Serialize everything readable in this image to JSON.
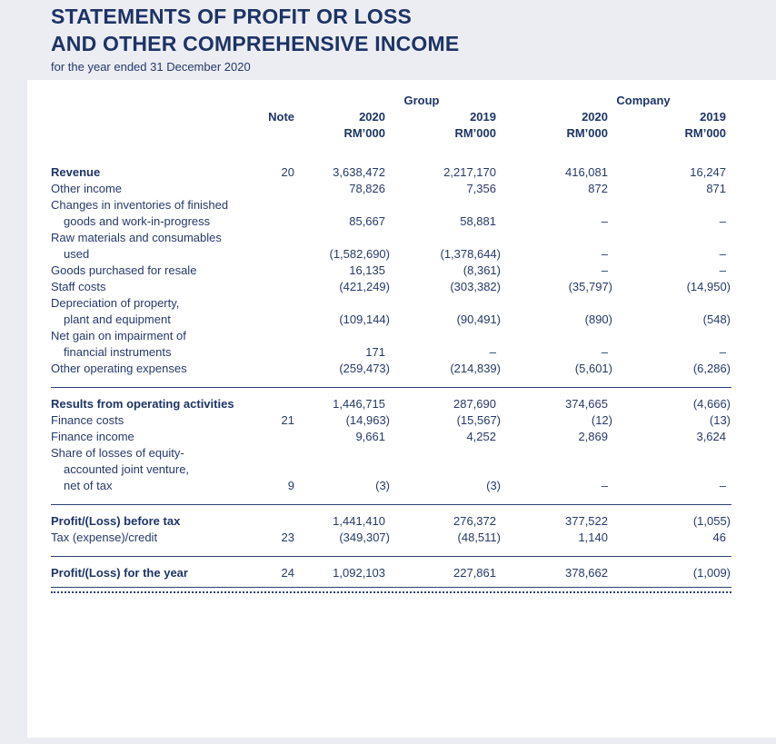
{
  "document": {
    "title_lines": [
      "STATEMENTS OF PROFIT OR LOSS",
      "AND OTHER COMPREHENSIVE INCOME"
    ],
    "subtitle": "for the year ended 31 December 2020"
  },
  "colors": {
    "text_navy": "#26396b",
    "title_navy": "#1d3366",
    "page_background": "#ecedf2",
    "panel_background": "#ffffff"
  },
  "table": {
    "headers": {
      "group": "Group",
      "company": "Company",
      "note": "Note",
      "columns": [
        {
          "year": "2020",
          "unit": "RM’000"
        },
        {
          "year": "2019",
          "unit": "RM’000"
        },
        {
          "year": "2020",
          "unit": "RM’000"
        },
        {
          "year": "2019",
          "unit": "RM’000"
        }
      ]
    },
    "rows": [
      {
        "lines": [
          "Revenue"
        ],
        "bold": true,
        "note": "20",
        "values": [
          "3,638,472",
          "2,217,170",
          "416,081",
          "16,247"
        ]
      },
      {
        "lines": [
          "Other income"
        ],
        "bold": false,
        "note": "",
        "values": [
          "78,826",
          "7,356",
          "872",
          "871"
        ]
      },
      {
        "lines": [
          "Changes in inventories of finished",
          "goods and work-in-progress"
        ],
        "bold": false,
        "note": "",
        "values": [
          "85,667",
          "58,881",
          "–",
          "–"
        ]
      },
      {
        "lines": [
          "Raw materials and consumables",
          "used"
        ],
        "bold": false,
        "note": "",
        "values": [
          "(1,582,690)",
          "(1,378,644)",
          "–",
          "–"
        ]
      },
      {
        "lines": [
          "Goods purchased for resale"
        ],
        "bold": false,
        "note": "",
        "values": [
          "16,135",
          "(8,361)",
          "–",
          "–"
        ]
      },
      {
        "lines": [
          "Staff costs"
        ],
        "bold": false,
        "note": "",
        "values": [
          "(421,249)",
          "(303,382)",
          "(35,797)",
          "(14,950)"
        ]
      },
      {
        "lines": [
          "Depreciation of property,",
          "plant and equipment"
        ],
        "bold": false,
        "note": "",
        "values": [
          "(109,144)",
          "(90,491)",
          "(890)",
          "(548)"
        ]
      },
      {
        "lines": [
          "Net gain on impairment of",
          "financial instruments"
        ],
        "bold": false,
        "note": "",
        "values": [
          "171",
          "–",
          "–",
          "–"
        ]
      },
      {
        "lines": [
          "Other operating expenses"
        ],
        "bold": false,
        "note": "",
        "values": [
          "(259,473)",
          "(214,839)",
          "(5,601)",
          "(6,286)"
        ]
      },
      {
        "rule_above": true,
        "lines": [
          "Results from operating activities"
        ],
        "bold": true,
        "note": "",
        "values": [
          "1,446,715",
          "287,690",
          "374,665",
          "(4,666)"
        ]
      },
      {
        "lines": [
          "Finance costs"
        ],
        "bold": false,
        "note": "21",
        "values": [
          "(14,963)",
          "(15,567)",
          "(12)",
          "(13)"
        ]
      },
      {
        "lines": [
          "Finance income"
        ],
        "bold": false,
        "note": "",
        "values": [
          "9,661",
          "4,252",
          "2,869",
          "3,624"
        ]
      },
      {
        "lines": [
          "Share of losses of equity-",
          "accounted joint venture,",
          "net of tax"
        ],
        "bold": false,
        "note": "9",
        "values": [
          "(3)",
          "(3)",
          "–",
          "–"
        ]
      },
      {
        "rule_above": true,
        "lines": [
          "Profit/(Loss) before tax"
        ],
        "bold": true,
        "note": "",
        "values": [
          "1,441,410",
          "276,372",
          "377,522",
          "(1,055)"
        ]
      },
      {
        "lines": [
          "Tax (expense)/credit"
        ],
        "bold": false,
        "note": "23",
        "values": [
          "(349,307)",
          "(48,511)",
          "1,140",
          "46"
        ]
      },
      {
        "rule_above": true,
        "lines": [
          "Profit/(Loss) for the year"
        ],
        "bold": true,
        "note": "24",
        "values": [
          "1,092,103",
          "227,861",
          "378,662",
          "(1,009)"
        ]
      }
    ]
  }
}
